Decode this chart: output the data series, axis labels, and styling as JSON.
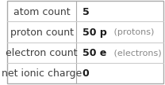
{
  "rows": [
    {
      "label": "atom count",
      "value_bold": "5",
      "value_suffix": ""
    },
    {
      "label": "proton count",
      "value_bold": "50 p",
      "value_suffix": " (protons)"
    },
    {
      "label": "electron count",
      "value_bold": "50 e",
      "value_suffix": " (electrons)"
    },
    {
      "label": "net ionic charge",
      "value_bold": "0",
      "value_suffix": ""
    }
  ],
  "col_split": 0.44,
  "bg_color": "#ffffff",
  "border_color": "#aaaaaa",
  "label_color": "#404040",
  "value_bold_color": "#1a1a1a",
  "value_suffix_color": "#888888",
  "grid_color": "#cccccc",
  "label_fontsize": 9.0,
  "value_fontsize": 9.0,
  "suffix_fontsize": 8.0
}
